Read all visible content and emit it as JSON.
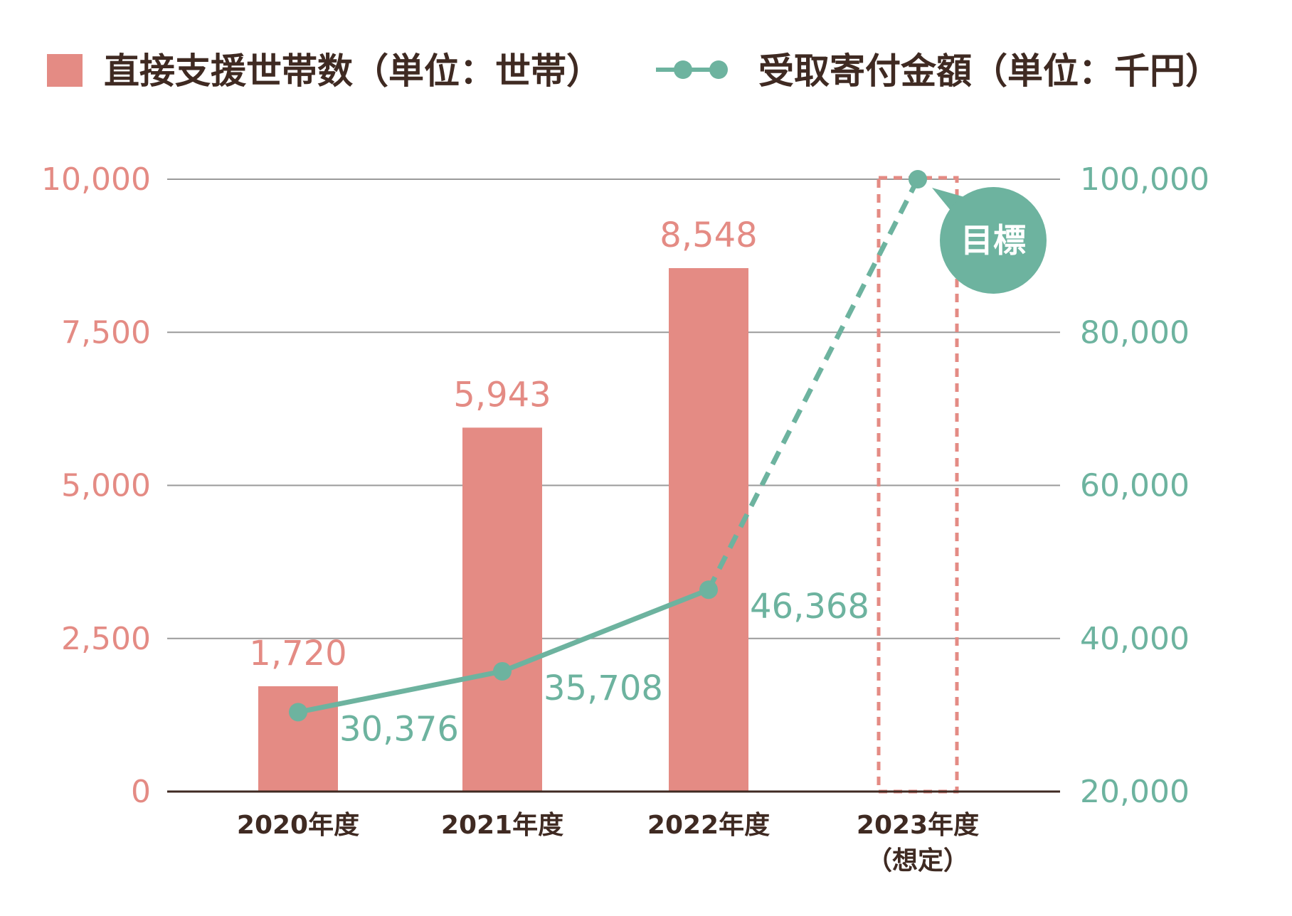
{
  "colors": {
    "bar": "#e48b84",
    "line": "#6db39f",
    "axis": "#3f2a22",
    "grid": "#9a9a9a",
    "text": "#3f2a22"
  },
  "chart_data": {
    "type": "bar+line",
    "legend": {
      "bar": "直接支援世帯数（単位：世帯）",
      "line": "受取寄付金額（単位：千円）"
    },
    "categories": [
      {
        "line1": "2020年度",
        "line2": ""
      },
      {
        "line1": "2021年度",
        "line2": ""
      },
      {
        "line1": "2022年度",
        "line2": ""
      },
      {
        "line1": "2023年度",
        "line2": "（想定）"
      }
    ],
    "bar_series": {
      "name": "直接支援世帯数（単位：世帯）",
      "values": [
        1720,
        5943,
        8548,
        null
      ],
      "labels": [
        "1,720",
        "5,943",
        "8,548",
        ""
      ]
    },
    "line_series": {
      "name": "受取寄付金額（単位：千円）",
      "values": [
        30376,
        35708,
        46368,
        100000
      ],
      "labels": [
        "30,376",
        "35,708",
        "46,368",
        ""
      ],
      "projected_from_index": 2
    },
    "y_left": {
      "range": [
        0,
        10000
      ],
      "ticks": [
        0,
        2500,
        5000,
        7500,
        10000
      ],
      "tick_labels": [
        "0",
        "2,500",
        "5,000",
        "7,500",
        "10,000"
      ]
    },
    "y_right": {
      "range": [
        20000,
        100000
      ],
      "ticks": [
        20000,
        40000,
        60000,
        80000,
        100000
      ],
      "tick_labels": [
        "20,000",
        "40,000",
        "60,000",
        "80,000",
        "100,000"
      ]
    },
    "target": {
      "category_index": 3,
      "label": "目標"
    },
    "grid": true,
    "legend_position": "top"
  }
}
